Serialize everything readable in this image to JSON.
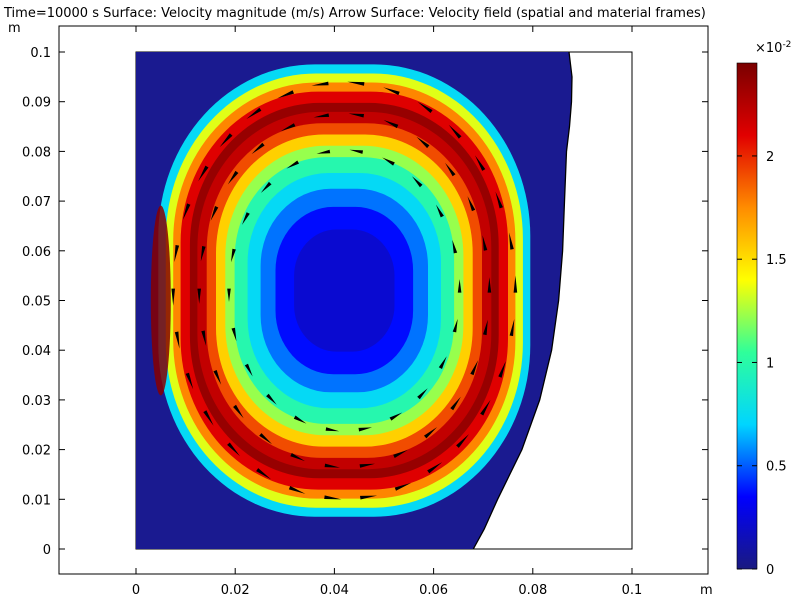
{
  "title": "Time=10000 s  Surface: Velocity magnitude (m/s)  Arrow Surface: Velocity field (spatial and material frames)",
  "chart_data": {
    "type": "heatmap",
    "title": "Time=10000 s  Surface: Velocity magnitude (m/s)  Arrow Surface: Velocity field (spatial and material frames)",
    "x_unit": "m",
    "y_unit": "m",
    "xlim": [
      -0.015,
      0.115
    ],
    "ylim": [
      -0.005,
      0.105
    ],
    "x_ticks": [
      0,
      0.02,
      0.04,
      0.06,
      0.08,
      0.1
    ],
    "x_tick_labels": [
      "0",
      "0.02",
      "0.04",
      "0.06",
      "0.08",
      "0.1"
    ],
    "y_ticks": [
      0,
      0.01,
      0.02,
      0.03,
      0.04,
      0.05,
      0.06,
      0.07,
      0.08,
      0.09,
      0.1
    ],
    "y_tick_labels": [
      "0",
      "0.01",
      "0.02",
      "0.03",
      "0.04",
      "0.05",
      "0.06",
      "0.07",
      "0.08",
      "0.09",
      "0.1"
    ],
    "domain_box": {
      "x": [
        0,
        0.1
      ],
      "y": [
        0,
        0.1
      ]
    },
    "free_surface_boundary": [
      [
        0.0873,
        0.1
      ],
      [
        0.0879,
        0.095
      ],
      [
        0.0878,
        0.09
      ],
      [
        0.0874,
        0.085
      ],
      [
        0.0868,
        0.08
      ],
      [
        0.0864,
        0.07
      ],
      [
        0.086,
        0.06
      ],
      [
        0.0852,
        0.05
      ],
      [
        0.0838,
        0.04
      ],
      [
        0.0814,
        0.03
      ],
      [
        0.0778,
        0.02
      ],
      [
        0.0729,
        0.01
      ],
      [
        0.0702,
        0.004
      ],
      [
        0.068,
        0.0
      ]
    ],
    "colorbar": {
      "label": "×10⁻²",
      "multiplier": "×10",
      "exponent": "-2",
      "min": 0,
      "max": 2.45,
      "ticks": [
        0,
        0.5,
        1,
        1.5,
        2
      ],
      "tick_labels": [
        "0",
        "0.5",
        "1",
        "1.5",
        "2"
      ],
      "colormap": "Rainbow",
      "colors": [
        "#1a1a80",
        "#0000ff",
        "#00d5ff",
        "#2fff9a",
        "#ffff00",
        "#ff8c00",
        "#e10000",
        "#7a0000"
      ]
    },
    "field_description": "Counter-clockwise recirculating vortex; center near (0.042, 0.052), max speed about 0.024 m/s near left wall",
    "vortex_center": [
      0.042,
      0.052
    ],
    "speed_max": 0.0245
  }
}
